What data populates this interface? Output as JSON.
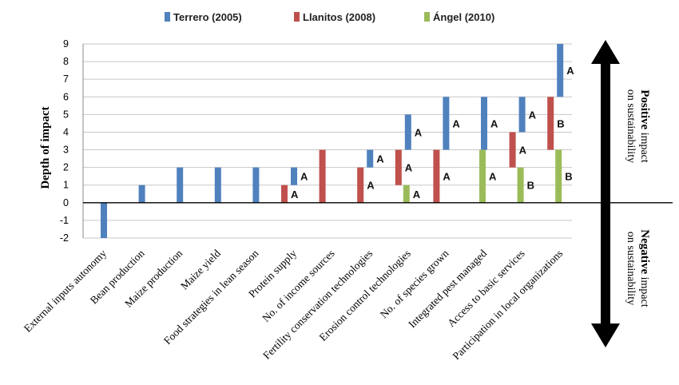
{
  "chart_data": {
    "type": "bar",
    "ylabel": "Depth of impact",
    "xlabel": "",
    "ylim": [
      -2,
      9
    ],
    "yticks": [
      -2,
      -1,
      0,
      1,
      2,
      3,
      4,
      5,
      6,
      7,
      8,
      9
    ],
    "grid": true,
    "legend_position": "top",
    "categories": [
      "External inputs autonomy",
      "Bean production",
      "Maize production",
      "Maize yield",
      "Food strategies in lean season",
      "Protein supply",
      "No. of income sources",
      "Fertility conservation technologies",
      "Erosion control technologies",
      "No. of species grown",
      "Integrated pest managed",
      "Access to basic services",
      "Participation in local organizations"
    ],
    "series": [
      {
        "name": "Terrero (2005)",
        "color": "#4F81BD",
        "segments": [
          {
            "category": 0,
            "from": 0,
            "to": -2,
            "label": ""
          },
          {
            "category": 1,
            "from": 0,
            "to": 1,
            "label": ""
          },
          {
            "category": 2,
            "from": 0,
            "to": 2,
            "label": ""
          },
          {
            "category": 3,
            "from": 0,
            "to": 2,
            "label": ""
          },
          {
            "category": 4,
            "from": 0,
            "to": 2,
            "label": ""
          },
          {
            "category": 5,
            "from": 1,
            "to": 2,
            "label": "A"
          },
          {
            "category": 7,
            "from": 2,
            "to": 3,
            "label": "A"
          },
          {
            "category": 8,
            "from": 3,
            "to": 5,
            "label": "A"
          },
          {
            "category": 9,
            "from": 3,
            "to": 6,
            "label": "A"
          },
          {
            "category": 10,
            "from": 3,
            "to": 6,
            "label": "A"
          },
          {
            "category": 11,
            "from": 4,
            "to": 6,
            "label": "A"
          },
          {
            "category": 12,
            "from": 6,
            "to": 9,
            "label": "A"
          }
        ]
      },
      {
        "name": "Llanitos (2008)",
        "color": "#C0504D",
        "segments": [
          {
            "category": 5,
            "from": 0,
            "to": 1,
            "label": "A"
          },
          {
            "category": 6,
            "from": 0,
            "to": 3,
            "label": ""
          },
          {
            "category": 7,
            "from": 0,
            "to": 2,
            "label": "A"
          },
          {
            "category": 8,
            "from": 1,
            "to": 3,
            "label": "A"
          },
          {
            "category": 9,
            "from": 0,
            "to": 3,
            "label": "A"
          },
          {
            "category": 11,
            "from": 2,
            "to": 4,
            "label": "A"
          },
          {
            "category": 12,
            "from": 3,
            "to": 6,
            "label": "B"
          }
        ]
      },
      {
        "name": "Ángel (2010)",
        "color": "#9BBB59",
        "segments": [
          {
            "category": 8,
            "from": 0,
            "to": 1,
            "label": "A"
          },
          {
            "category": 10,
            "from": 0,
            "to": 3,
            "label": "A"
          },
          {
            "category": 11,
            "from": 0,
            "to": 2,
            "label": "B"
          },
          {
            "category": 12,
            "from": 0,
            "to": 3,
            "label": "B"
          }
        ]
      }
    ],
    "annotations": {
      "positive_bold": "Positive",
      "positive_rest": " impact",
      "positive_line2": "on sustainability",
      "negative_bold": "Negative",
      "negative_rest": " impact",
      "negative_line2": "on sustainability"
    },
    "axis_line_color": "#000000",
    "grid_color": "#c8c8c8",
    "arrow_color": "#000000"
  }
}
